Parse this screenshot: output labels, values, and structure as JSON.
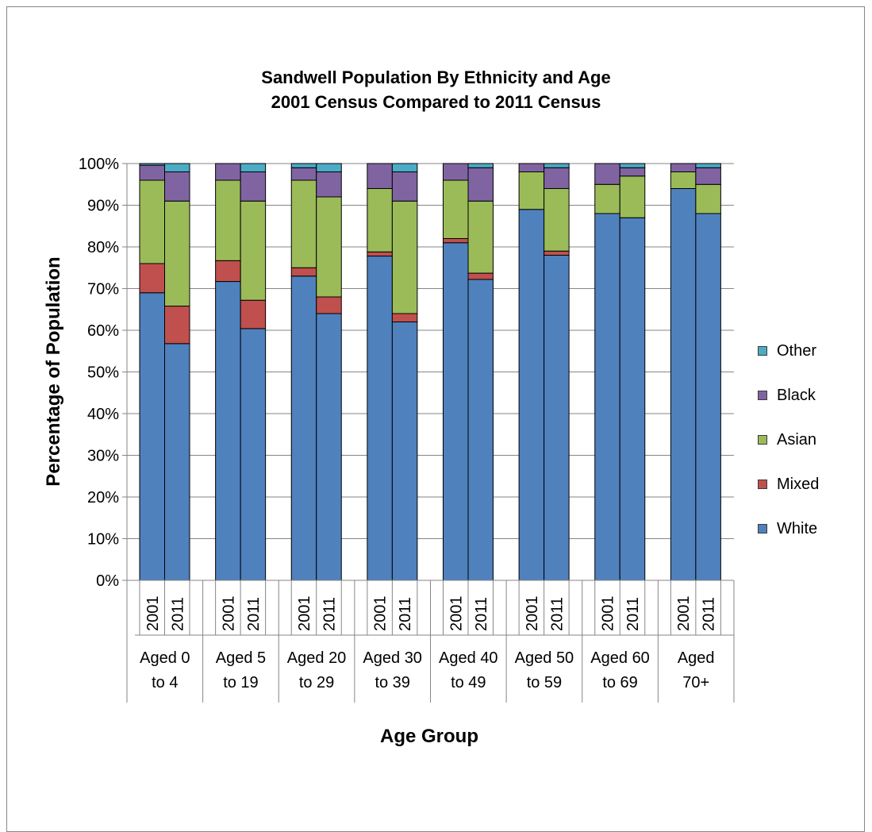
{
  "chart_data": {
    "type": "bar",
    "stacked": true,
    "title_line1": "Sandwell Population By Ethnicity and Age",
    "title_line2": "2001 Census Compared to 2011 Census",
    "xlabel": "Age Group",
    "ylabel": "Percentage of Population",
    "ylim": [
      0,
      100
    ],
    "yticks": [
      "0%",
      "10%",
      "20%",
      "30%",
      "40%",
      "50%",
      "60%",
      "70%",
      "80%",
      "90%",
      "100%"
    ],
    "grid": true,
    "legend_position": "right",
    "groups": [
      {
        "label_line1": "Aged 0",
        "label_line2": "to 4"
      },
      {
        "label_line1": "Aged 5",
        "label_line2": "to 19"
      },
      {
        "label_line1": "Aged 20",
        "label_line2": "to 29"
      },
      {
        "label_line1": "Aged 30",
        "label_line2": "to 39"
      },
      {
        "label_line1": "Aged 40",
        "label_line2": "to 49"
      },
      {
        "label_line1": "Aged 50",
        "label_line2": "to 59"
      },
      {
        "label_line1": "Aged 60",
        "label_line2": "to 69"
      },
      {
        "label_line1": "Aged",
        "label_line2": "70+"
      }
    ],
    "years": [
      "2001",
      "2011"
    ],
    "series": [
      {
        "name": "White",
        "color": "#4F81BD",
        "values": [
          [
            69,
            56.8
          ],
          [
            71.7,
            60.4
          ],
          [
            73,
            64
          ],
          [
            77.8,
            62
          ],
          [
            81,
            72.2
          ],
          [
            89,
            78
          ],
          [
            88,
            87
          ],
          [
            94,
            88
          ]
        ]
      },
      {
        "name": "Mixed",
        "color": "#C0504D",
        "values": [
          [
            7,
            9
          ],
          [
            5,
            6.8
          ],
          [
            2,
            4
          ],
          [
            1,
            2
          ],
          [
            1,
            1.5
          ],
          [
            0,
            1
          ],
          [
            0,
            0
          ],
          [
            0,
            0
          ]
        ]
      },
      {
        "name": "Asian",
        "color": "#9BBB59",
        "values": [
          [
            20,
            25.2
          ],
          [
            19.3,
            23.8
          ],
          [
            21,
            24
          ],
          [
            15.2,
            27
          ],
          [
            14,
            17.3
          ],
          [
            9,
            15
          ],
          [
            7,
            10
          ],
          [
            4,
            7
          ]
        ]
      },
      {
        "name": "Black",
        "color": "#8064A2",
        "values": [
          [
            3.6,
            7
          ],
          [
            4,
            7
          ],
          [
            3,
            6
          ],
          [
            6,
            7
          ],
          [
            4,
            8
          ],
          [
            2,
            5
          ],
          [
            5,
            2
          ],
          [
            2,
            4
          ]
        ]
      },
      {
        "name": "Other",
        "color": "#4BACC6",
        "values": [
          [
            0.4,
            2
          ],
          [
            0,
            2
          ],
          [
            1,
            2
          ],
          [
            0,
            2
          ],
          [
            0,
            1
          ],
          [
            0,
            1
          ],
          [
            0,
            1
          ],
          [
            0,
            1
          ]
        ]
      }
    ]
  },
  "legend": [
    "Other",
    "Black",
    "Asian",
    "Mixed",
    "White"
  ]
}
